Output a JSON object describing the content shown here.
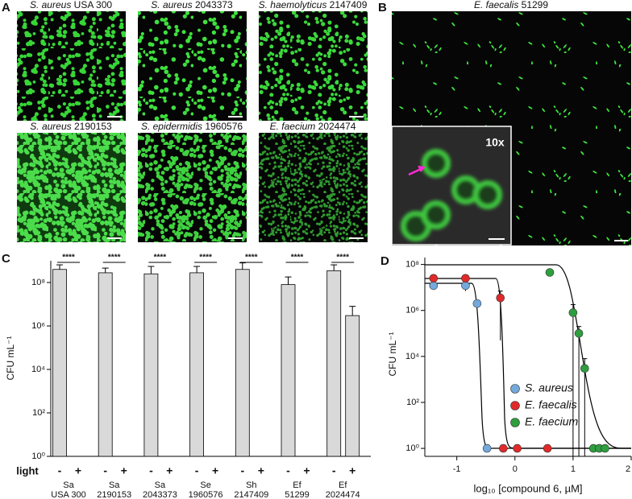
{
  "figure": {
    "panel_labels": [
      "A",
      "B",
      "C",
      "D"
    ]
  },
  "images": [
    {
      "species": "S. aureus",
      "strain": "USA 300"
    },
    {
      "species": "S. aureus",
      "strain": "2043373"
    },
    {
      "species": "S. haemolyticus",
      "strain": "2147409"
    },
    {
      "species": "S. aureus",
      "strain": "2190153"
    },
    {
      "species": "S. epidermidis",
      "strain": "1960576"
    },
    {
      "species": "E. faecium",
      "strain": "2024474"
    }
  ],
  "image_b": {
    "species": "E. faecalis",
    "strain": "51299",
    "inset_label": "10x"
  },
  "chart_data": [
    {
      "type": "bar",
      "ylabel": "CFU mL⁻¹",
      "log_scale": true,
      "ylim": [
        1,
        1000000000
      ],
      "yticks": [
        {
          "value": 1,
          "label": "10⁰"
        },
        {
          "value": 100,
          "label": "10²"
        },
        {
          "value": 10000,
          "label": "10⁴"
        },
        {
          "value": 1000000,
          "label": "10⁶"
        },
        {
          "value": 100000000,
          "label": "10⁸"
        }
      ],
      "x_title": "light",
      "categories": [
        [
          "Sa",
          "USA 300"
        ],
        [
          "Sa",
          "2190153"
        ],
        [
          "Sa",
          "2043373"
        ],
        [
          "Se",
          "1960576"
        ],
        [
          "Sh",
          "2147409"
        ],
        [
          "Ef",
          "51299"
        ],
        [
          "Ef",
          "2024474"
        ]
      ],
      "series": [
        {
          "name": "-",
          "color": "#d9d9d9",
          "values": [
            400000000,
            280000000,
            250000000,
            280000000,
            400000000,
            80000000,
            350000000
          ],
          "errors": [
            250000000,
            180000000,
            300000000,
            270000000,
            400000000,
            100000000,
            300000000
          ]
        },
        {
          "name": "+",
          "color": "#d9d9d9",
          "values": [
            1,
            1,
            1,
            1,
            1,
            1,
            3000000
          ],
          "errors": [
            null,
            null,
            null,
            null,
            null,
            null,
            5000000
          ]
        }
      ],
      "annotations": [
        "****",
        "****",
        "****",
        "****",
        "****",
        "****",
        "****"
      ]
    },
    {
      "type": "scatter",
      "ylabel": "CFU mL⁻¹",
      "xlabel": "log₁₀ [compound 6, µM]",
      "log_scale": true,
      "xlim": [
        -1.55,
        2
      ],
      "xticks": [
        -1,
        0,
        1,
        2
      ],
      "ylim": [
        0.45,
        200000000
      ],
      "yticks": [
        {
          "value": 1,
          "label": "10⁰"
        },
        {
          "value": 100,
          "label": "10²"
        },
        {
          "value": 10000,
          "label": "10⁴"
        },
        {
          "value": 1000000,
          "label": "10⁶"
        },
        {
          "value": 100000000,
          "label": "10⁸"
        }
      ],
      "series": [
        {
          "name": "S. aureus",
          "color": "#74a9dc",
          "x": [
            -1.4,
            -0.85,
            -0.65,
            -0.48
          ],
          "values": [
            12000000,
            12000000,
            2000000,
            1
          ],
          "errors": [
            null,
            5000000,
            null,
            null
          ]
        },
        {
          "name": "E. faecalis",
          "color": "#e02a2a",
          "x": [
            -1.4,
            -0.85,
            -0.25,
            -0.2,
            0.04,
            0.56
          ],
          "values": [
            25000000,
            25000000,
            3500000,
            1,
            1,
            1
          ],
          "errors": [
            null,
            null,
            3450000,
            null,
            null,
            null
          ]
        },
        {
          "name": "E. faecium",
          "color": "#2e9e3e",
          "x": [
            0.6,
            1.0,
            1.1,
            1.2,
            1.35,
            1.45,
            1.55
          ],
          "values": [
            45000000,
            800000,
            100000,
            3000,
            1,
            1,
            1
          ],
          "errors": [
            null,
            1000000,
            100000,
            5000,
            null,
            null,
            null
          ]
        }
      ],
      "legend": "lower center"
    }
  ]
}
